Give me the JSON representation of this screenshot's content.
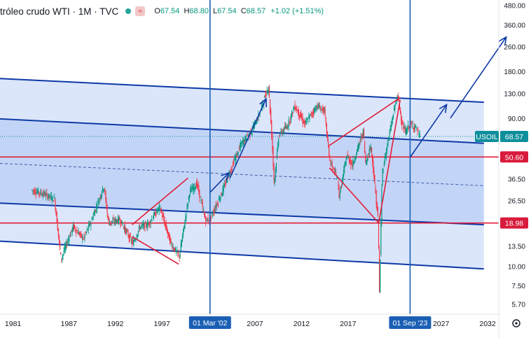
{
  "header": {
    "symbol": "tróleo crudo WTI · 1M · TVC",
    "open_label": "O",
    "open": "67.54",
    "high_label": "H",
    "high": "68.80",
    "low_label": "L",
    "low": "67.54",
    "close_label": "C",
    "close": "68.57",
    "change": "+1.02 (+1.51%)"
  },
  "chart_data": {
    "type": "candlestick",
    "title": "",
    "xlabel": "",
    "ylabel": "",
    "yscale": "log",
    "ylim": [
      4.9,
      520
    ],
    "xlim": [
      1979.6,
      2033.2
    ],
    "x_ticks": [
      "1981",
      "1987",
      "1992",
      "1997",
      "2007",
      "2012",
      "2017",
      "2027",
      "2032"
    ],
    "y_ticks": [
      "480.00",
      "360.00",
      "260.00",
      "180.00",
      "130.00",
      "90.00",
      "50.60",
      "36.50",
      "26.50",
      "13.50",
      "10.00",
      "7.50",
      "5.70"
    ],
    "price_series": {
      "name": "",
      "points": [
        [
          1983.0,
          31
        ],
        [
          1984.5,
          29
        ],
        [
          1985.5,
          27
        ],
        [
          1986.2,
          11
        ],
        [
          1986.6,
          13
        ],
        [
          1987.5,
          18
        ],
        [
          1988.6,
          15
        ],
        [
          1989.5,
          20
        ],
        [
          1990.8,
          33
        ],
        [
          1991.3,
          19
        ],
        [
          1992.5,
          20
        ],
        [
          1993.9,
          14
        ],
        [
          1994.7,
          18
        ],
        [
          1995.5,
          18.5
        ],
        [
          1996.8,
          24
        ],
        [
          1998.0,
          14
        ],
        [
          1998.9,
          11.5
        ],
        [
          2000.0,
          30
        ],
        [
          2000.8,
          34
        ],
        [
          2001.7,
          20
        ],
        [
          2002.2,
          20
        ],
        [
          2003.5,
          30
        ],
        [
          2004.8,
          48
        ],
        [
          2005.6,
          62
        ],
        [
          2006.5,
          72
        ],
        [
          2007.4,
          92
        ],
        [
          2008.5,
          145
        ],
        [
          2008.9,
          60
        ],
        [
          2009.1,
          34
        ],
        [
          2009.6,
          70
        ],
        [
          2010.5,
          80
        ],
        [
          2011.3,
          108
        ],
        [
          2012.4,
          82
        ],
        [
          2012.9,
          92
        ],
        [
          2013.7,
          108
        ],
        [
          2014.5,
          100
        ],
        [
          2015.1,
          47
        ],
        [
          2015.9,
          37
        ],
        [
          2016.1,
          28
        ],
        [
          2016.9,
          52
        ],
        [
          2017.5,
          45
        ],
        [
          2018.7,
          75
        ],
        [
          2018.9,
          46
        ],
        [
          2019.5,
          60
        ],
        [
          2020.3,
          18.98
        ],
        [
          2020.4,
          6
        ],
        [
          2020.7,
          40
        ],
        [
          2021.5,
          72
        ],
        [
          2022.2,
          118
        ],
        [
          2022.4,
          123
        ],
        [
          2022.9,
          80
        ],
        [
          2023.2,
          73
        ],
        [
          2023.67,
          82
        ],
        [
          2024.3,
          79
        ],
        [
          2024.75,
          68.57
        ]
      ]
    },
    "last_price": 68.57,
    "price_labels": [
      {
        "text": "USOIL",
        "value": 68.57,
        "color": "#0f8f9c"
      },
      {
        "text": "68.57",
        "value": 68.57,
        "color": "#0f8f9c"
      },
      {
        "text": "50.60",
        "value": 50.6,
        "color": "#d81b3c"
      },
      {
        "text": "18.98",
        "value": 18.98,
        "color": "#d81b3c"
      }
    ],
    "horizontal_lines": [
      {
        "value": 50.6,
        "color": "#e01e37"
      },
      {
        "value": 18.98,
        "color": "#e01e37"
      }
    ],
    "channel": {
      "color": "#0d3aa6",
      "fill_outer": "#dbe6fb",
      "fill_inner": "#c3d5f7",
      "upper": [
        [
          1979.6,
          162
        ],
        [
          2031.6,
          114
        ]
      ],
      "mid_upper": [
        [
          1979.6,
          89
        ],
        [
          2031.6,
          62
        ]
      ],
      "median": [
        [
          1979.6,
          46
        ],
        [
          2031.6,
          33
        ]
      ],
      "mid_lower": [
        [
          1979.6,
          25.5
        ],
        [
          2031.6,
          18.5
        ]
      ],
      "lower": [
        [
          1979.6,
          14.5
        ],
        [
          2031.6,
          9.6
        ]
      ]
    },
    "triangles": [
      {
        "color": "#e01e37",
        "points": [
          [
            1993.8,
            18.5
          ],
          [
            1999.8,
            37
          ],
          [
            1993.8,
            15.5
          ],
          [
            1998.8,
            10.3
          ]
        ]
      },
      {
        "color": "#e01e37",
        "points": [
          [
            2015.0,
            60
          ],
          [
            2022.6,
            122
          ],
          [
            2015.0,
            43
          ],
          [
            2020.3,
            18.98
          ],
          [
            2022.6,
            118
          ]
        ]
      }
    ],
    "vertical_lines": [
      {
        "value": 2002.17,
        "label": "01 Mar '02",
        "color": "#1a5fb4"
      },
      {
        "value": 2023.67,
        "label": "01 Sep '23",
        "color": "#1a5fb4"
      }
    ],
    "arrows": [
      {
        "color": "#0d3aa6",
        "points": [
          [
            2002.2,
            30
          ],
          [
            2004.2,
            40
          ]
        ]
      },
      {
        "color": "#0d3aa6",
        "points": [
          [
            2004.3,
            37
          ],
          [
            2008.2,
            120
          ]
        ]
      },
      {
        "color": "#0d3aa6",
        "points": [
          [
            2023.7,
            50.6
          ],
          [
            2027.6,
            110
          ]
        ]
      },
      {
        "color": "#0d3aa6",
        "points": [
          [
            2028.0,
            90
          ],
          [
            2034.0,
            300
          ]
        ]
      }
    ]
  }
}
